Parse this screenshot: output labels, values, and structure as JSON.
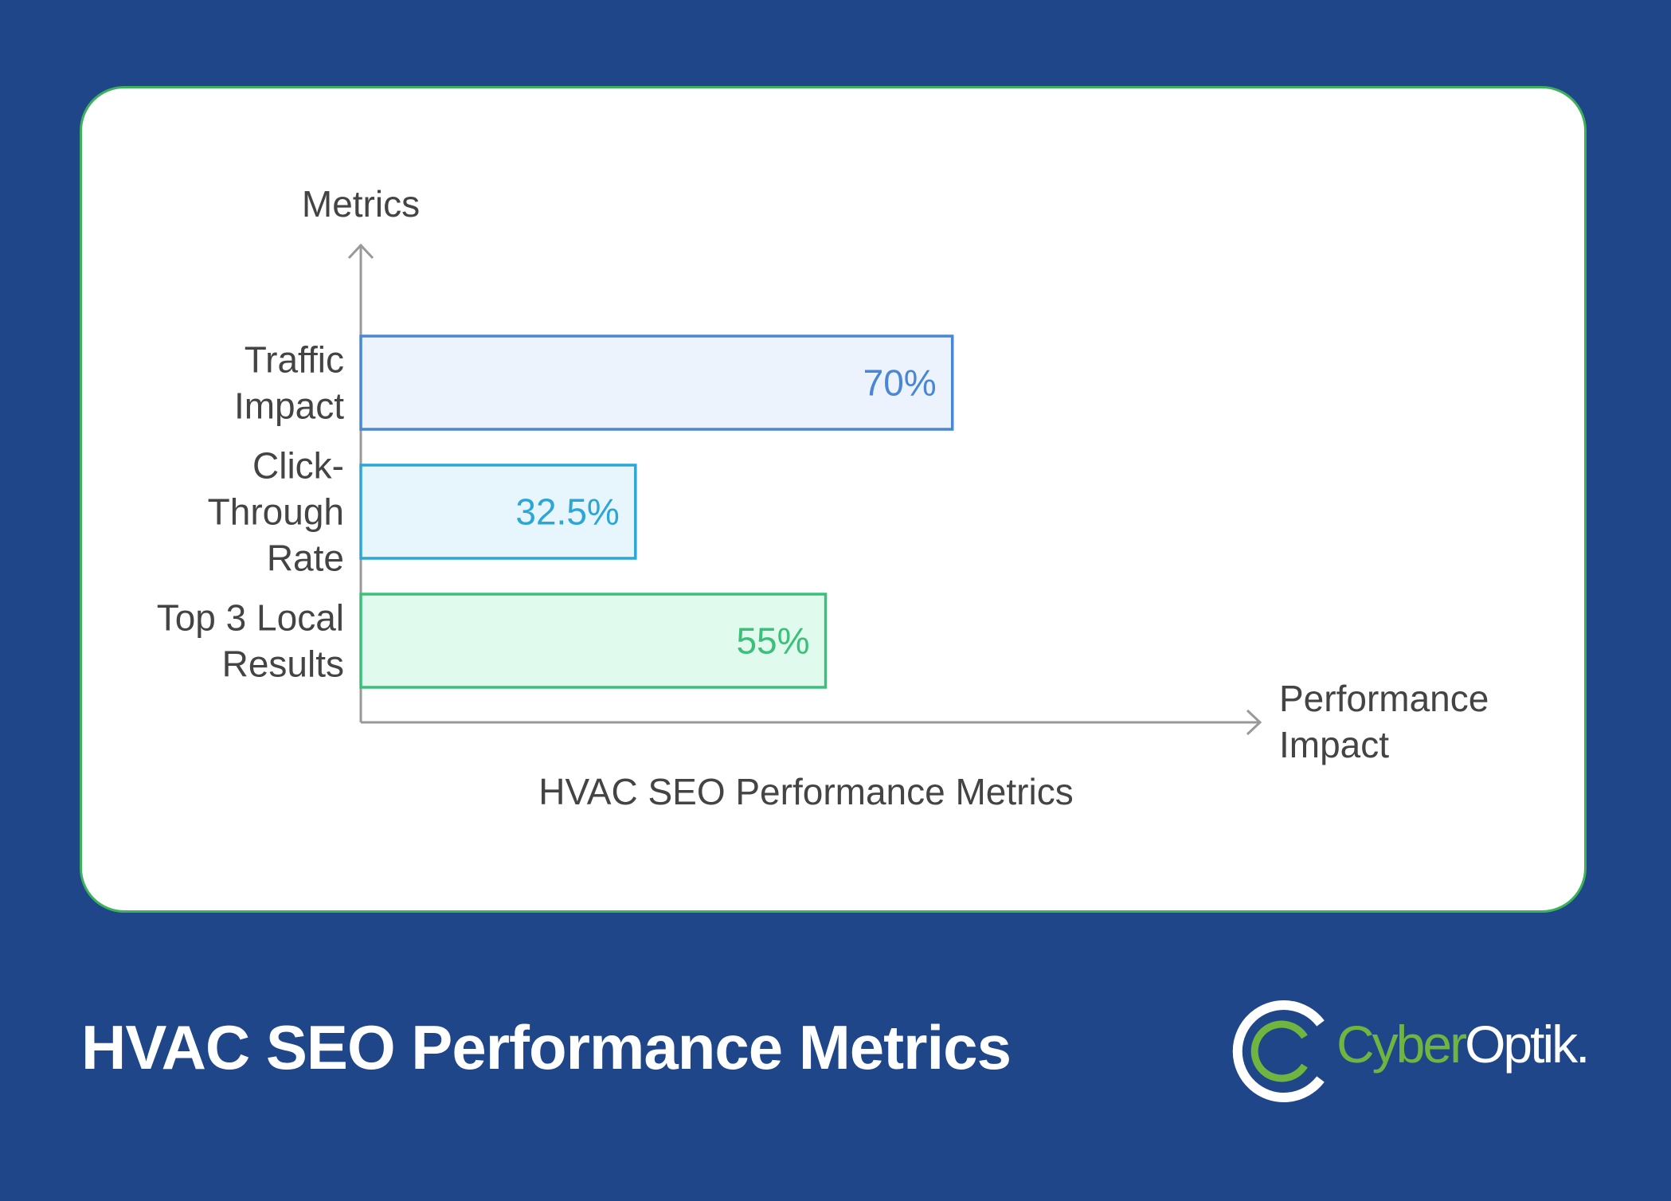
{
  "chart_data": {
    "type": "bar",
    "orientation": "horizontal",
    "title": "HVAC SEO Performance Metrics",
    "ylabel": "Metrics",
    "xlabel": "Performance Impact",
    "xlim": [
      0,
      100
    ],
    "grid": false,
    "bars": [
      {
        "category": [
          "Traffic",
          "Impact"
        ],
        "value": 70,
        "label": "70%",
        "stroke": "#4a86d6",
        "fill": "#edf3fd"
      },
      {
        "category": [
          "Click-",
          "Through",
          "Rate"
        ],
        "value": 32.5,
        "label": "32.5%",
        "stroke": "#2ba6d6",
        "fill": "#e6f6fc"
      },
      {
        "category": [
          "Top 3 Local",
          "Results"
        ],
        "value": 55,
        "label": "55%",
        "stroke": "#3ac07a",
        "fill": "#e0fbee"
      }
    ]
  },
  "footer": {
    "title": "HVAC SEO Performance Metrics"
  },
  "logo": {
    "name_part1": "Cyber",
    "name_part2": "Optik.",
    "icon": "cyberoptik-ring-icon",
    "accent_color": "#6fb53f"
  },
  "colors": {
    "background": "#20468a",
    "card_border": "#3bb25a",
    "axis": "#999999",
    "text": "#444444"
  }
}
